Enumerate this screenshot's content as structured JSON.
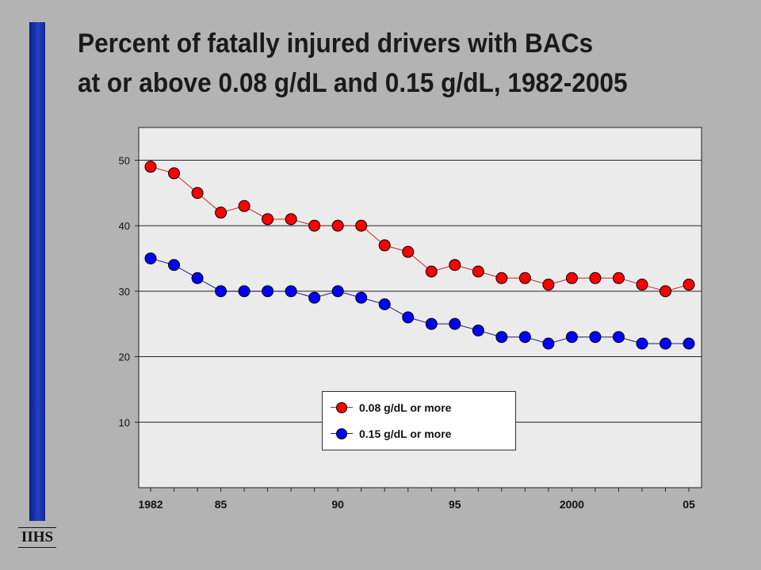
{
  "slide": {
    "title_line1": "Percent of fatally injured drivers with BACs",
    "title_line2": "at or above 0.08 g/dL and 0.15 g/dL, 1982-2005",
    "logo": "IIHS",
    "accent_bar_color": "#1f35b4",
    "background_color": "#b3b3b3"
  },
  "chart_data": {
    "type": "line",
    "title": "Percent of fatally injured drivers with BACs at or above 0.08 g/dL and 0.15 g/dL, 1982-2005",
    "x": [
      1982,
      1983,
      1984,
      1985,
      1986,
      1987,
      1988,
      1989,
      1990,
      1991,
      1992,
      1993,
      1994,
      1995,
      1996,
      1997,
      1998,
      1999,
      2000,
      2001,
      2002,
      2003,
      2004,
      2005
    ],
    "xlim": [
      1982,
      2005
    ],
    "x_tick_values": [
      1982,
      1985,
      1990,
      1995,
      2000,
      2005
    ],
    "x_tick_labels": [
      "1982",
      "85",
      "90",
      "95",
      "2000",
      "05"
    ],
    "ylim": [
      0,
      55
    ],
    "y_ticks": [
      10,
      20,
      30,
      40,
      50
    ],
    "grid": "horizontal",
    "legend_position": "bottom-center",
    "series": [
      {
        "name": "0.08 g/dL or more",
        "color": "#ff0000",
        "line_color": "#cc2222",
        "values": [
          49,
          48,
          45,
          42,
          43,
          41,
          41,
          40,
          40,
          40,
          37,
          36,
          33,
          34,
          33,
          32,
          32,
          31,
          32,
          32,
          32,
          31,
          30,
          31
        ]
      },
      {
        "name": "0.15 g/dL or more",
        "color": "#0000ff",
        "line_color": "#1a1a7a",
        "values": [
          35,
          34,
          32,
          30,
          30,
          30,
          30,
          29,
          30,
          29,
          28,
          26,
          25,
          25,
          24,
          23,
          23,
          22,
          23,
          23,
          23,
          22,
          22,
          22
        ]
      }
    ]
  }
}
